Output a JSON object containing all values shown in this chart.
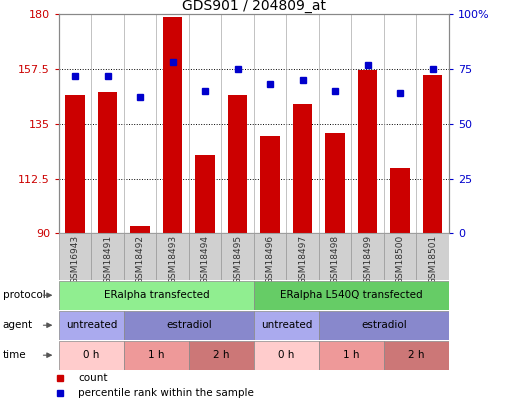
{
  "title": "GDS901 / 204809_at",
  "samples": [
    "GSM16943",
    "GSM18491",
    "GSM18492",
    "GSM18493",
    "GSM18494",
    "GSM18495",
    "GSM18496",
    "GSM18497",
    "GSM18498",
    "GSM18499",
    "GSM18500",
    "GSM18501"
  ],
  "counts": [
    147,
    148,
    93,
    179,
    122,
    147,
    130,
    143,
    131,
    157,
    117,
    155
  ],
  "percentile_ranks": [
    72,
    72,
    62,
    78,
    65,
    75,
    68,
    70,
    65,
    77,
    64,
    75
  ],
  "ymin": 90,
  "ymax": 180,
  "yticks": [
    90,
    112.5,
    135,
    157.5,
    180
  ],
  "ytick_labels": [
    "90",
    "112.5",
    "135",
    "157.5",
    "180"
  ],
  "right_yticks": [
    0,
    25,
    50,
    75,
    100
  ],
  "right_ytick_labels": [
    "0",
    "25",
    "50",
    "75",
    "100%"
  ],
  "bar_color": "#cc0000",
  "dot_color": "#0000cc",
  "protocol_groups": [
    {
      "label": "ERalpha transfected",
      "start": 0,
      "end": 6,
      "color": "#90ee90"
    },
    {
      "label": "ERalpha L540Q transfected",
      "start": 6,
      "end": 12,
      "color": "#66cc66"
    }
  ],
  "agent_groups": [
    {
      "label": "untreated",
      "start": 0,
      "end": 2,
      "color": "#aaaaee"
    },
    {
      "label": "estradiol",
      "start": 2,
      "end": 6,
      "color": "#8888cc"
    },
    {
      "label": "untreated",
      "start": 6,
      "end": 8,
      "color": "#aaaaee"
    },
    {
      "label": "estradiol",
      "start": 8,
      "end": 12,
      "color": "#8888cc"
    }
  ],
  "time_groups": [
    {
      "label": "0 h",
      "start": 0,
      "end": 2,
      "color": "#ffcccc"
    },
    {
      "label": "1 h",
      "start": 2,
      "end": 4,
      "color": "#ee9999"
    },
    {
      "label": "2 h",
      "start": 4,
      "end": 6,
      "color": "#cc7777"
    },
    {
      "label": "0 h",
      "start": 6,
      "end": 8,
      "color": "#ffcccc"
    },
    {
      "label": "1 h",
      "start": 8,
      "end": 10,
      "color": "#ee9999"
    },
    {
      "label": "2 h",
      "start": 10,
      "end": 12,
      "color": "#cc7777"
    }
  ],
  "row_labels": [
    "protocol",
    "agent",
    "time"
  ],
  "legend_items": [
    {
      "label": "count",
      "color": "#cc0000"
    },
    {
      "label": "percentile rank within the sample",
      "color": "#0000cc"
    }
  ],
  "tick_color_left": "#cc0000",
  "tick_color_right": "#0000cc",
  "xtick_bg_color": "#d0d0d0",
  "xtick_border_color": "#999999"
}
